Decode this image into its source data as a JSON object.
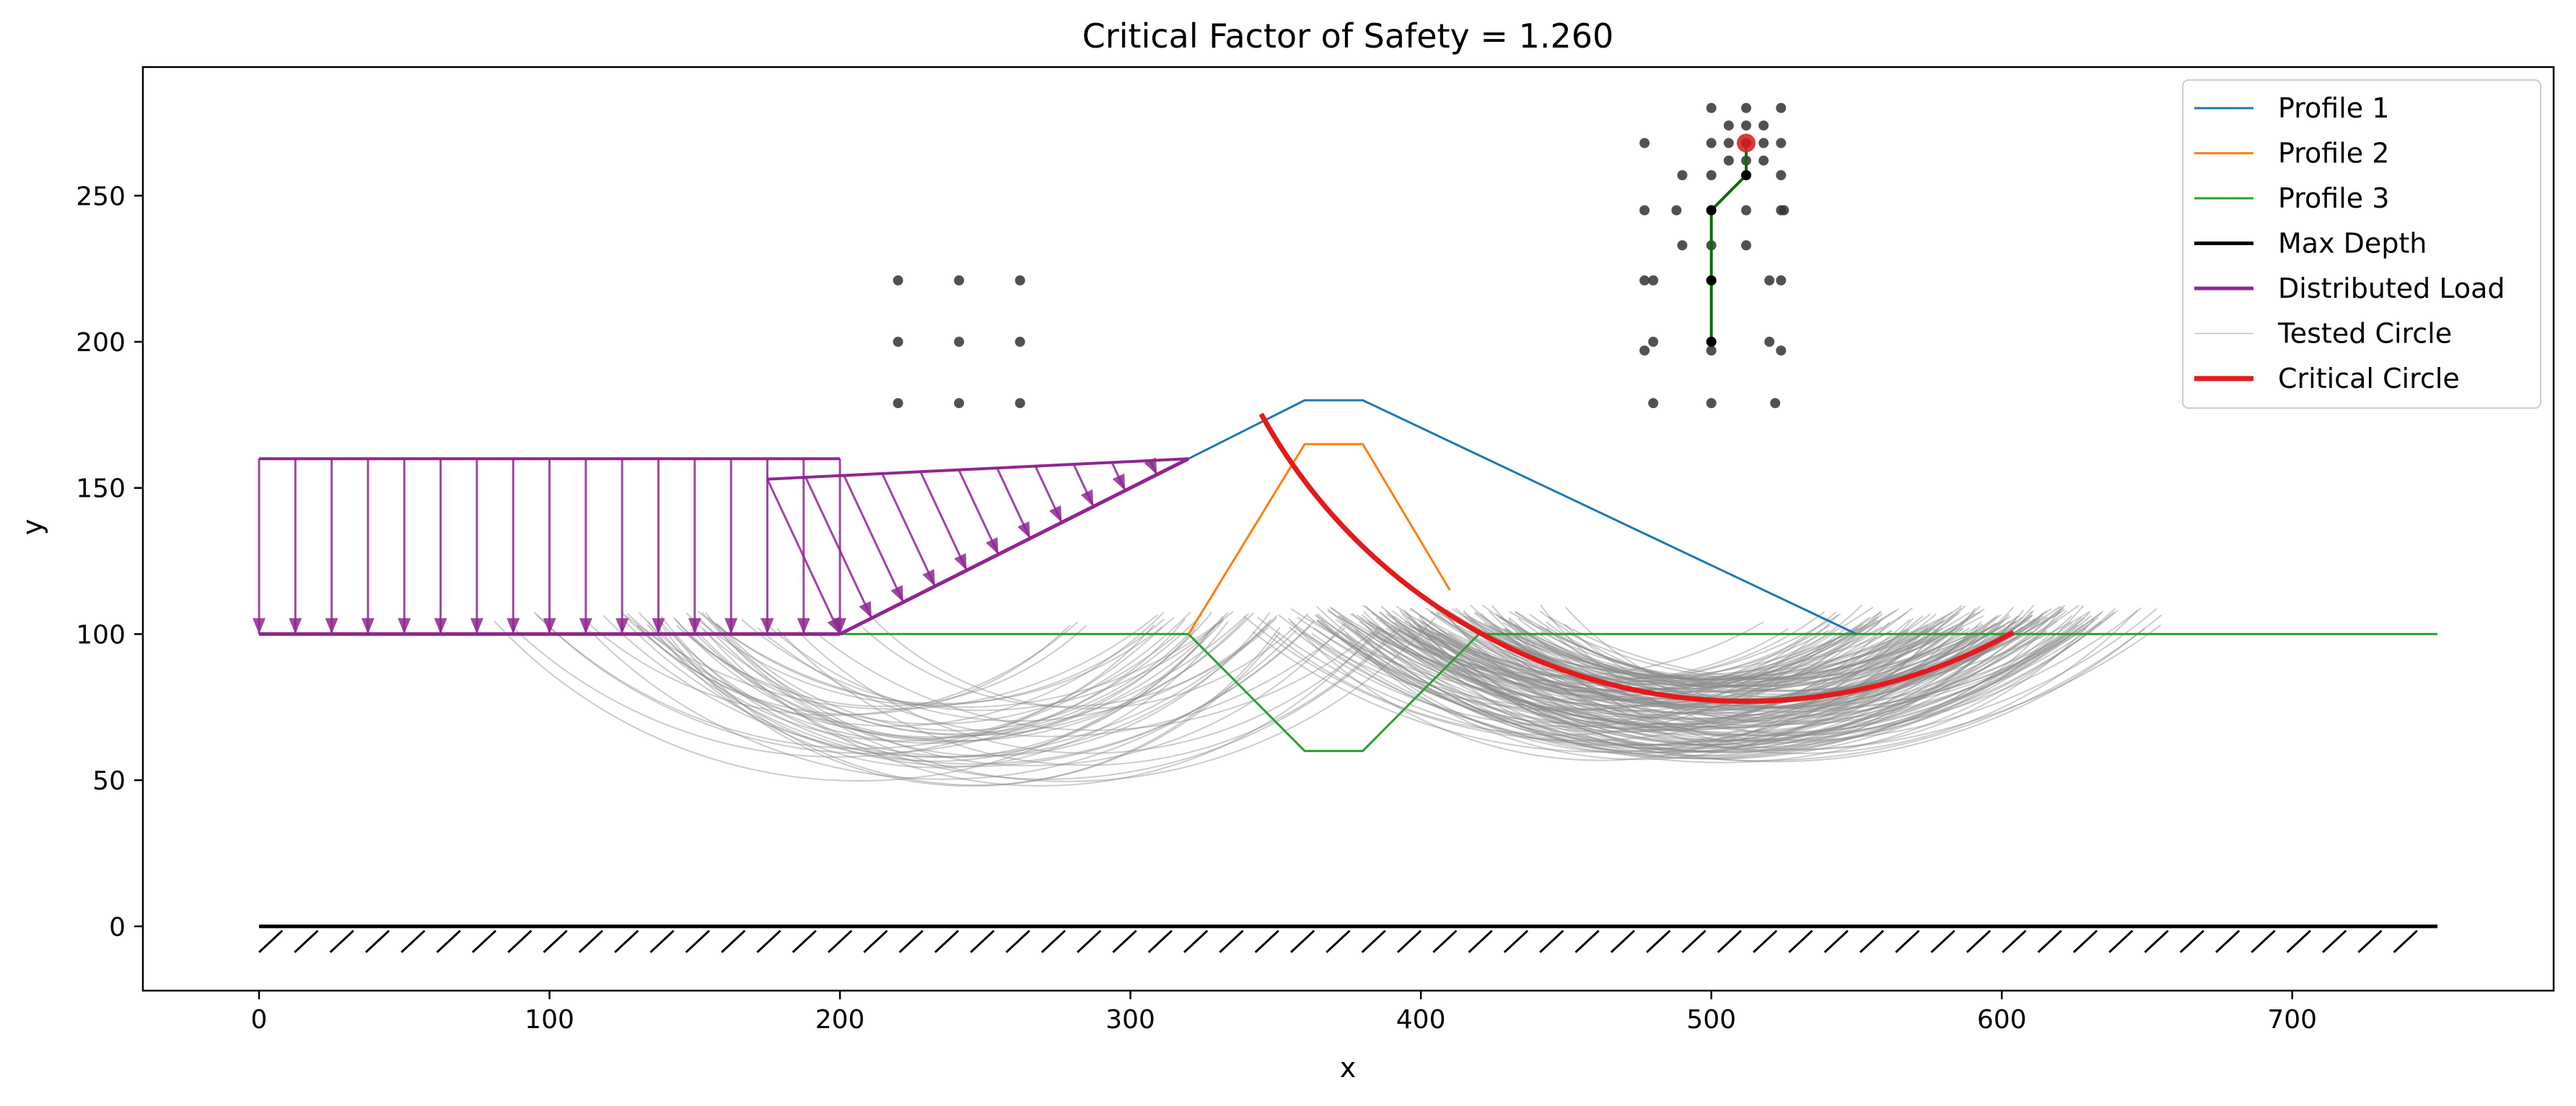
{
  "chart_data": {
    "type": "line",
    "title": "Critical Factor of Safety = 1.260",
    "xlabel": "x",
    "ylabel": "y",
    "xlim": [
      -40,
      790
    ],
    "ylim": [
      -22,
      294
    ],
    "x_ticks": [
      0,
      100,
      200,
      300,
      400,
      500,
      600,
      700
    ],
    "y_ticks": [
      0,
      50,
      100,
      150,
      200,
      250
    ],
    "grid": false,
    "legend_position": "top-right",
    "series": [
      {
        "name": "Profile 1",
        "color": "#1f77b4",
        "points": [
          [
            320,
            160
          ],
          [
            360,
            180
          ],
          [
            380,
            180
          ],
          [
            550,
            100
          ]
        ]
      },
      {
        "name": "Profile 2",
        "color": "#ff7f0e",
        "points": [
          [
            320,
            100
          ],
          [
            360,
            165
          ],
          [
            380,
            165
          ],
          [
            410,
            115
          ]
        ]
      },
      {
        "name": "Profile 3",
        "color": "#2ca02c",
        "points": [
          [
            0,
            100
          ],
          [
            320,
            100
          ],
          [
            360,
            60
          ],
          [
            380,
            60
          ],
          [
            420,
            100
          ],
          [
            750,
            100
          ]
        ]
      },
      {
        "name": "Max Depth",
        "color": "#000000",
        "points": [
          [
            0,
            0
          ],
          [
            750,
            0
          ]
        ]
      },
      {
        "name": "Distributed Load",
        "color": "#8e2790",
        "loads": [
          {
            "from": [
              0,
              100
            ],
            "to": [
              200,
              100
            ],
            "top": 160,
            "arrows": 17
          },
          {
            "from": [
              200,
              100
            ],
            "to": [
              320,
              160
            ],
            "top_start": [
              175,
              153
            ],
            "top_end": [
              320,
              160
            ],
            "arrows": 12
          }
        ]
      },
      {
        "name": "Tested Circle",
        "color": "#8c8c8c"
      },
      {
        "name": "Critical Circle",
        "color": "#e41a1c",
        "center": [
          512,
          268
        ],
        "radius": 191,
        "x_range": [
          345,
          604
        ]
      }
    ],
    "grid_centers_left": {
      "x": [
        220,
        241,
        262
      ],
      "y": [
        179,
        200,
        221
      ]
    },
    "grid_centers_right": [
      [
        480,
        179
      ],
      [
        500,
        179
      ],
      [
        522,
        179
      ],
      [
        477,
        197
      ],
      [
        480,
        200
      ],
      [
        500,
        197
      ],
      [
        500,
        200
      ],
      [
        520,
        200
      ],
      [
        524,
        197
      ],
      [
        477,
        221
      ],
      [
        480,
        221
      ],
      [
        500,
        221
      ],
      [
        520,
        221
      ],
      [
        524,
        221
      ],
      [
        490,
        233
      ],
      [
        500,
        233
      ],
      [
        512,
        233
      ],
      [
        477,
        245
      ],
      [
        488,
        245
      ],
      [
        500,
        245
      ],
      [
        512,
        245
      ],
      [
        524,
        245
      ],
      [
        525,
        245
      ],
      [
        490,
        257
      ],
      [
        500,
        257
      ],
      [
        512,
        257
      ],
      [
        524,
        257
      ],
      [
        477,
        268
      ],
      [
        500,
        268
      ],
      [
        506,
        262
      ],
      [
        512,
        262
      ],
      [
        518,
        262
      ],
      [
        506,
        268
      ],
      [
        512,
        268
      ],
      [
        518,
        268
      ],
      [
        524,
        268
      ],
      [
        506,
        274
      ],
      [
        512,
        274
      ],
      [
        518,
        274
      ],
      [
        500,
        280
      ],
      [
        512,
        280
      ],
      [
        524,
        280
      ]
    ],
    "center_search_path": [
      [
        500,
        200
      ],
      [
        500,
        221
      ],
      [
        500,
        245
      ],
      [
        512,
        257
      ],
      [
        512,
        268
      ]
    ],
    "critical_center": [
      512,
      268
    ]
  }
}
